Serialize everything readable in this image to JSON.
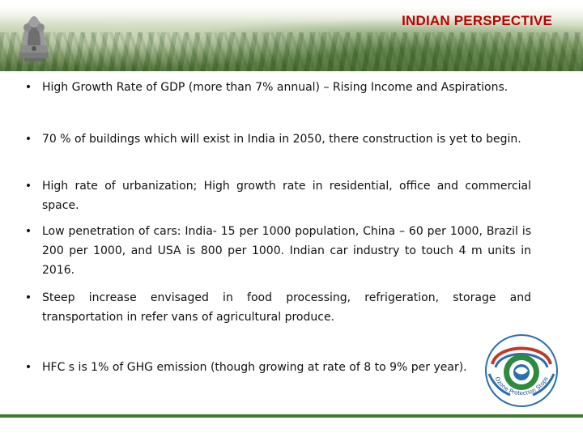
{
  "header": {
    "title": "INDIAN PERSPECTIVE"
  },
  "bullets": [
    {
      "text": "High Growth Rate of GDP (more than 7% annual) – Rising Income and Aspirations."
    },
    {
      "text": "70 % of buildings which will exist in India in 2050, there construction is yet to begin."
    },
    {
      "text": "High rate of urbanization; High growth rate in residential, office and commercial space."
    },
    {
      "text": "Low penetration of cars: India- 15 per 1000 population, China – 60 per 1000, Brazil is 200 per 1000, and USA is 800 per 1000. Indian car industry to touch 4 m units in 2016."
    },
    {
      "text": "Steep increase envisaged in food processing, refrigeration, storage and transportation in refer vans of agricultural produce."
    },
    {
      "text": "HFC s is 1% of GHG emission (though growing at rate of 8 to 9% per year)."
    }
  ],
  "bullet_symbol": "•",
  "colors": {
    "title": "#c00000",
    "header_green": "#4f7035",
    "bottom_line": "#3a7a2a"
  },
  "icons": {
    "emblem": "national-emblem-icon",
    "logo": "ozone-cell-logo-icon"
  },
  "logo": {
    "caption": "Ozone Protection Stops Pollution"
  }
}
